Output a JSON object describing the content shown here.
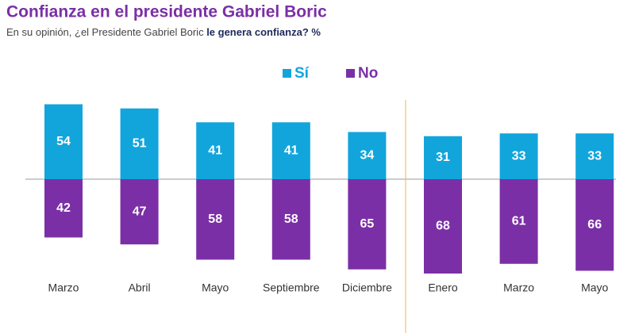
{
  "chart_data": {
    "type": "diverging_bar",
    "title": "Confianza en el presidente Gabriel Boric",
    "subtitle": [
      "En su opinión, ¿el Presidente Gabriel Boric ",
      "le genera confianza",
      "? %"
    ],
    "categories": [
      "Marzo",
      "Abril",
      "Mayo",
      "Septiembre",
      "Diciembre",
      "Enero",
      "Marzo",
      "Mayo"
    ],
    "series": [
      {
        "name": "Sí",
        "color": "#12a5dc",
        "values": [
          54,
          51,
          41,
          41,
          34,
          31,
          33,
          33
        ]
      },
      {
        "name": "No",
        "color": "#7b2fa6",
        "values": [
          42,
          47,
          58,
          58,
          65,
          68,
          61,
          66
        ]
      }
    ]
  }
}
